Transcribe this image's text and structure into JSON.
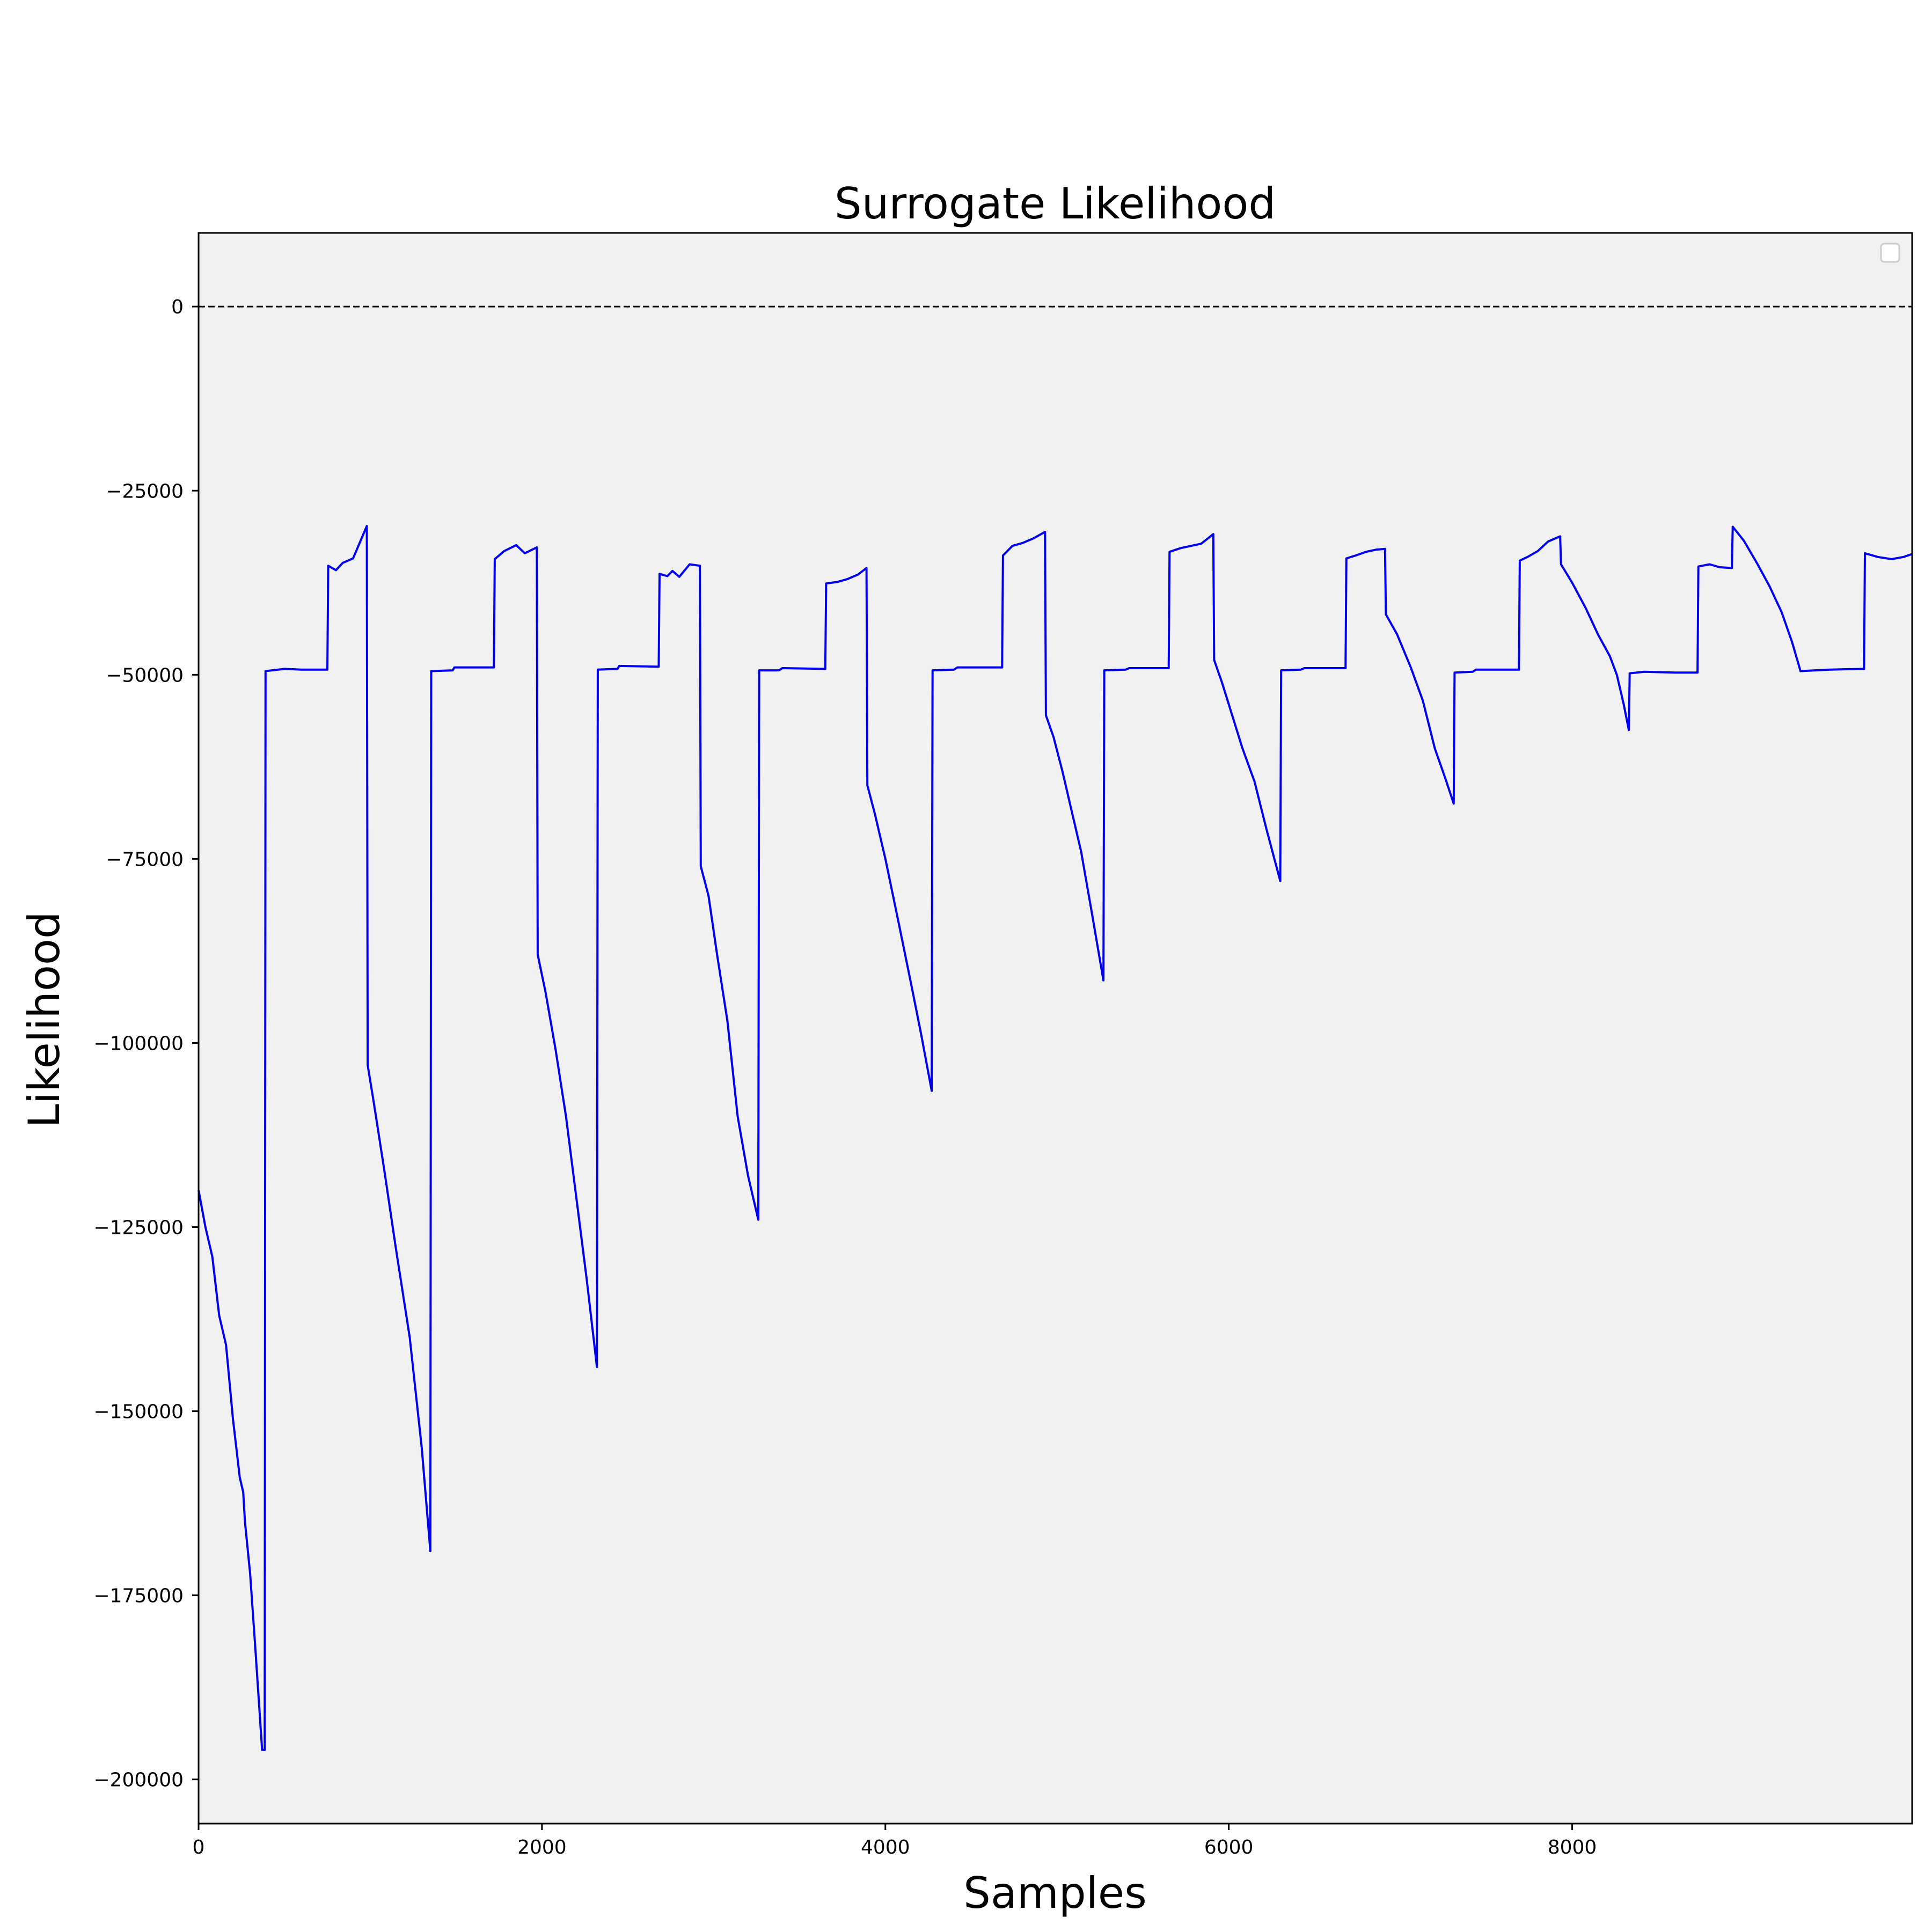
{
  "chart_data": {
    "type": "line",
    "title": "Surrogate  Likelihood",
    "xlabel": "Samples",
    "ylabel": "Likelihood",
    "xlim": [
      0,
      9980
    ],
    "ylim": [
      -206000,
      10000
    ],
    "x_ticks": [
      {
        "value": 0,
        "label": "0"
      },
      {
        "value": 2000,
        "label": "2000"
      },
      {
        "value": 4000,
        "label": "4000"
      },
      {
        "value": 6000,
        "label": "6000"
      },
      {
        "value": 8000,
        "label": "8000"
      }
    ],
    "y_ticks": [
      {
        "value": 0,
        "label": "0"
      },
      {
        "value": -25000,
        "label": "−25000"
      },
      {
        "value": -50000,
        "label": "−50000"
      },
      {
        "value": -75000,
        "label": "−75000"
      },
      {
        "value": -100000,
        "label": "−100000"
      },
      {
        "value": -125000,
        "label": "−125000"
      },
      {
        "value": -150000,
        "label": "−150000"
      },
      {
        "value": -175000,
        "label": "−175000"
      },
      {
        "value": -200000,
        "label": "−200000"
      }
    ],
    "reference_line": {
      "y": 0,
      "style": "dashed",
      "color": "#000000"
    },
    "grid": false,
    "legend": {
      "placement": "top-right",
      "entries": []
    },
    "colors": {
      "line": "#0000ee",
      "plot_background": "#f1f1f1",
      "figure_background": "#ffffff"
    },
    "series": [
      {
        "points": [
          [
            0,
            -120000
          ],
          [
            40,
            -125000
          ],
          [
            80,
            -129000
          ],
          [
            120,
            -137000
          ],
          [
            160,
            -141000
          ],
          [
            200,
            -151000
          ],
          [
            240,
            -159000
          ],
          [
            260,
            -161000
          ],
          [
            270,
            -165000
          ],
          [
            300,
            -172000
          ],
          [
            330,
            -182000
          ],
          [
            370,
            -196000
          ],
          [
            385,
            -196000
          ],
          [
            390,
            -49500
          ],
          [
            500,
            -49200
          ],
          [
            600,
            -49300
          ],
          [
            750,
            -49300
          ],
          [
            755,
            -35200
          ],
          [
            800,
            -35800
          ],
          [
            840,
            -34800
          ],
          [
            900,
            -34200
          ],
          [
            980,
            -29800
          ],
          [
            985,
            -103000
          ],
          [
            1020,
            -108000
          ],
          [
            1080,
            -117000
          ],
          [
            1150,
            -128000
          ],
          [
            1230,
            -140000
          ],
          [
            1300,
            -155000
          ],
          [
            1350,
            -169000
          ],
          [
            1355,
            -49500
          ],
          [
            1480,
            -49400
          ],
          [
            1490,
            -49000
          ],
          [
            1720,
            -49000
          ],
          [
            1725,
            -34300
          ],
          [
            1780,
            -33200
          ],
          [
            1850,
            -32400
          ],
          [
            1900,
            -33500
          ],
          [
            1970,
            -32700
          ],
          [
            1975,
            -88000
          ],
          [
            2020,
            -93000
          ],
          [
            2080,
            -101000
          ],
          [
            2140,
            -110000
          ],
          [
            2200,
            -121000
          ],
          [
            2260,
            -132000
          ],
          [
            2320,
            -144000
          ],
          [
            2325,
            -49300
          ],
          [
            2440,
            -49200
          ],
          [
            2450,
            -48800
          ],
          [
            2680,
            -48900
          ],
          [
            2685,
            -36300
          ],
          [
            2730,
            -36600
          ],
          [
            2760,
            -35900
          ],
          [
            2800,
            -36700
          ],
          [
            2860,
            -35000
          ],
          [
            2920,
            -35200
          ],
          [
            2925,
            -76000
          ],
          [
            2970,
            -80000
          ],
          [
            3020,
            -88000
          ],
          [
            3080,
            -97000
          ],
          [
            3140,
            -110000
          ],
          [
            3200,
            -118000
          ],
          [
            3260,
            -124000
          ],
          [
            3265,
            -49400
          ],
          [
            3380,
            -49400
          ],
          [
            3400,
            -49100
          ],
          [
            3650,
            -49200
          ],
          [
            3655,
            -37600
          ],
          [
            3720,
            -37400
          ],
          [
            3780,
            -37000
          ],
          [
            3840,
            -36400
          ],
          [
            3890,
            -35500
          ],
          [
            3895,
            -65000
          ],
          [
            3940,
            -69000
          ],
          [
            4000,
            -75000
          ],
          [
            4080,
            -84000
          ],
          [
            4150,
            -92000
          ],
          [
            4210,
            -99000
          ],
          [
            4270,
            -106500
          ],
          [
            4275,
            -49400
          ],
          [
            4400,
            -49300
          ],
          [
            4420,
            -49000
          ],
          [
            4680,
            -49000
          ],
          [
            4685,
            -33800
          ],
          [
            4740,
            -32500
          ],
          [
            4800,
            -32100
          ],
          [
            4860,
            -31500
          ],
          [
            4930,
            -30600
          ],
          [
            4935,
            -55500
          ],
          [
            4980,
            -58500
          ],
          [
            5030,
            -63000
          ],
          [
            5080,
            -68000
          ],
          [
            5140,
            -74000
          ],
          [
            5200,
            -82000
          ],
          [
            5270,
            -91500
          ],
          [
            5275,
            -49400
          ],
          [
            5400,
            -49300
          ],
          [
            5420,
            -49100
          ],
          [
            5650,
            -49100
          ],
          [
            5655,
            -33300
          ],
          [
            5720,
            -32800
          ],
          [
            5780,
            -32500
          ],
          [
            5840,
            -32200
          ],
          [
            5910,
            -30900
          ],
          [
            5915,
            -48000
          ],
          [
            5960,
            -51000
          ],
          [
            6020,
            -55500
          ],
          [
            6080,
            -60000
          ],
          [
            6150,
            -64500
          ],
          [
            6220,
            -71000
          ],
          [
            6300,
            -78000
          ],
          [
            6305,
            -49400
          ],
          [
            6420,
            -49300
          ],
          [
            6440,
            -49100
          ],
          [
            6680,
            -49100
          ],
          [
            6685,
            -34200
          ],
          [
            6740,
            -33800
          ],
          [
            6800,
            -33300
          ],
          [
            6860,
            -33000
          ],
          [
            6910,
            -32900
          ],
          [
            6915,
            -41800
          ],
          [
            6980,
            -44500
          ],
          [
            7060,
            -49000
          ],
          [
            7130,
            -53500
          ],
          [
            7200,
            -60000
          ],
          [
            7260,
            -64000
          ],
          [
            7310,
            -67500
          ],
          [
            7315,
            -49700
          ],
          [
            7420,
            -49600
          ],
          [
            7440,
            -49300
          ],
          [
            7690,
            -49300
          ],
          [
            7695,
            -34500
          ],
          [
            7740,
            -34000
          ],
          [
            7800,
            -33200
          ],
          [
            7860,
            -31900
          ],
          [
            7930,
            -31200
          ],
          [
            7935,
            -35000
          ],
          [
            8000,
            -37500
          ],
          [
            8080,
            -41000
          ],
          [
            8150,
            -44500
          ],
          [
            8220,
            -47500
          ],
          [
            8260,
            -50000
          ],
          [
            8300,
            -54000
          ],
          [
            8330,
            -57500
          ],
          [
            8335,
            -49800
          ],
          [
            8420,
            -49600
          ],
          [
            8600,
            -49700
          ],
          [
            8730,
            -49700
          ],
          [
            8735,
            -35300
          ],
          [
            8800,
            -35000
          ],
          [
            8860,
            -35400
          ],
          [
            8930,
            -35500
          ],
          [
            8935,
            -29900
          ],
          [
            9000,
            -31800
          ],
          [
            9080,
            -35000
          ],
          [
            9150,
            -38000
          ],
          [
            9220,
            -41500
          ],
          [
            9280,
            -45500
          ],
          [
            9330,
            -49500
          ],
          [
            9500,
            -49300
          ],
          [
            9700,
            -49200
          ],
          [
            9705,
            -33500
          ],
          [
            9780,
            -34000
          ],
          [
            9860,
            -34300
          ],
          [
            9930,
            -34000
          ],
          [
            9980,
            -33600
          ]
        ]
      }
    ]
  }
}
